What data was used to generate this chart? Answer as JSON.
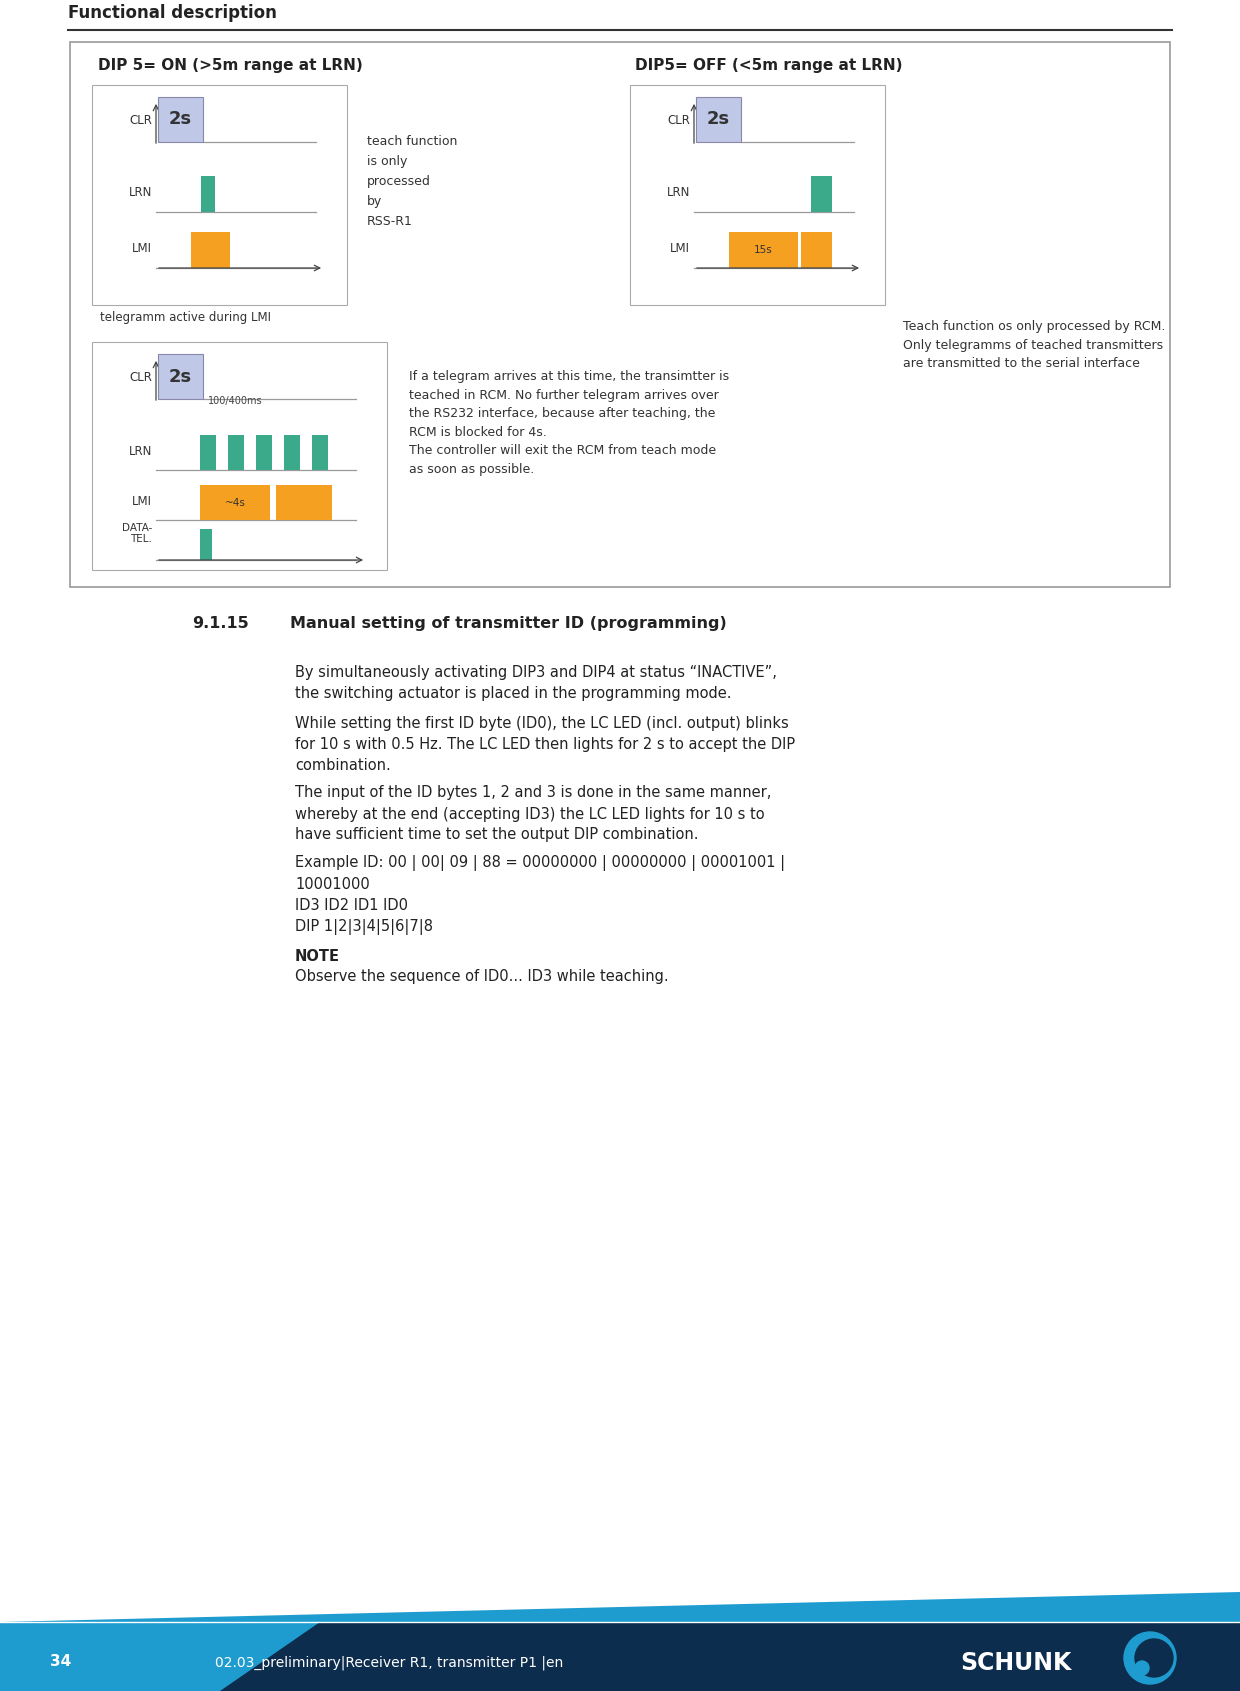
{
  "page_width": 12.4,
  "page_height": 16.91,
  "bg_color": "#ffffff",
  "header_text": "Functional description",
  "header_line_color": "#333333",
  "footer_bg_dark": "#0d2d4e",
  "footer_bg_light": "#1f9ccf",
  "footer_page_num": "34",
  "footer_doc_ref": "02.03_preliminary|Receiver R1, transmitter P1 |en",
  "section_number": "9.1.15",
  "section_title": "Manual setting of transmitter ID (programming)",
  "body_paragraphs": [
    "By simultaneously activating DIP3 and DIP4 at status “INACTIVE”,\nthe switching actuator is placed in the programming mode.",
    "While setting the first ID byte (ID0), the LC LED (incl. output) blinks\nfor 10 s with 0.5 Hz. The LC LED then lights for 2 s to accept the DIP\ncombination.",
    "The input of the ID bytes 1, 2 and 3 is done in the same manner,\nwhereby at the end (accepting ID3) the LC LED lights for 10 s to\nhave sufficient time to set the output DIP combination.",
    "Example ID: 00 | 00| 09 | 88 = 00000000 | 00000000 | 00001001 |\n10001000\nID3 ID2 ID1 ID0\nDIP 1|2|3|4|5|6|7|8"
  ],
  "note_title": "NOTE",
  "note_text": "Observe the sequence of ID0... ID3 while teaching.",
  "diagram_border_color": "#999999",
  "orange_color": "#f5a020",
  "green_color": "#3aaa8a",
  "gray_color": "#aaaaaa",
  "light_gray": "#bbbbbb",
  "purple_box_color": "#c0c8e8",
  "top_left_title": "DIP 5= ON (>5m range at LRN)",
  "top_right_title": "DIP5= OFF (<5m range at LRN)",
  "text_color": "#222222",
  "mid_divider_color": "#cccccc",
  "box_bg": "#f8f8f8"
}
